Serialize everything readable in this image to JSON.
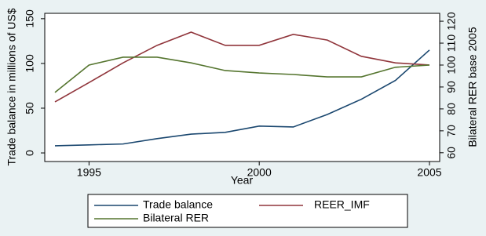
{
  "chart_data": {
    "type": "line",
    "x": [
      1994,
      1995,
      1996,
      1997,
      1998,
      1999,
      2000,
      2001,
      2002,
      2003,
      2004,
      2005
    ],
    "xlim": [
      1993.7,
      2005.3
    ],
    "xticks": [
      1995,
      2000,
      2005
    ],
    "xlabel": "Year",
    "ylim": [
      -9.6,
      156
    ],
    "yticks": [
      0,
      50,
      100,
      150
    ],
    "ylabel": "Trade balance in millions of US$",
    "y2lim": [
      56,
      123.6
    ],
    "y2ticks": [
      60,
      70,
      80,
      90,
      100,
      110,
      120
    ],
    "y2label": "Bilateral RER base 2005",
    "grid": false,
    "legend": "bottom",
    "series": [
      {
        "name": "Trade balance",
        "color": "#1a476f",
        "values": [
          8,
          9,
          10,
          16,
          21,
          23,
          30,
          29,
          43,
          60,
          81,
          115
        ]
      },
      {
        "name": "REER_IMF",
        "color": "#90353b",
        "axis": "y2",
        "values": [
          83.2,
          92,
          101,
          109,
          115,
          109,
          109,
          114,
          111.4,
          104,
          101,
          100
        ]
      },
      {
        "name": "Bilateral RER",
        "color": "#55752f",
        "axis": "y2",
        "values": [
          87.5,
          100,
          103.6,
          103.6,
          101,
          97.5,
          96.4,
          95.7,
          94.6,
          94.6,
          99,
          100
        ]
      }
    ]
  }
}
